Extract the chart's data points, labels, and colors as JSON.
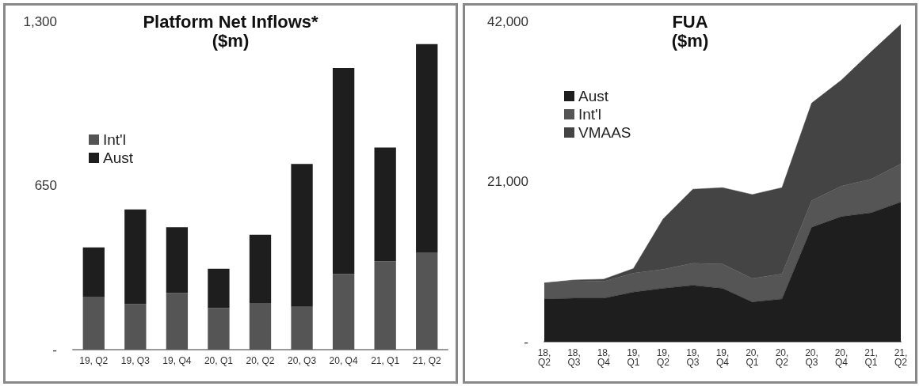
{
  "chart_data": [
    {
      "type": "bar",
      "title": "Platform Net Inflows*",
      "subtitle": "($m)",
      "stacked": true,
      "categories": [
        "19, Q2",
        "19, Q3",
        "19, Q4",
        "20, Q1",
        "20, Q2",
        "20, Q3",
        "20, Q4",
        "21, Q1",
        "21, Q2"
      ],
      "series": [
        {
          "name": "Int'l",
          "color": "#555555",
          "values": [
            210,
            180,
            225,
            165,
            185,
            170,
            300,
            350,
            385
          ]
        },
        {
          "name": "Aust",
          "color": "#1e1e1e",
          "values": [
            195,
            375,
            260,
            155,
            270,
            565,
            815,
            450,
            825
          ]
        }
      ],
      "ylim": [
        0,
        1300
      ],
      "yticks": [
        {
          "value": 0,
          "label": "-"
        },
        650,
        {
          "value": 1300,
          "label": "1,300"
        }
      ],
      "grid": false,
      "legend": "left"
    },
    {
      "type": "area",
      "title": "FUA",
      "subtitle": "($m)",
      "stacked": true,
      "categories": [
        "18, Q2",
        "18, Q3",
        "18, Q4",
        "19, Q1",
        "19, Q2",
        "19, Q3",
        "19, Q4",
        "20, Q1",
        "20, Q2",
        "20, Q3",
        "20, Q4",
        "21, Q1",
        "21, Q2"
      ],
      "series": [
        {
          "name": "Aust",
          "color": "#1e1e1e",
          "values": [
            5600,
            5700,
            5700,
            6500,
            7000,
            7400,
            7000,
            5200,
            5600,
            15000,
            16400,
            16900,
            18300
          ]
        },
        {
          "name": "Int'l",
          "color": "#555555",
          "values": [
            2100,
            2300,
            2200,
            2500,
            2500,
            2900,
            3200,
            3100,
            3300,
            3500,
            4000,
            4400,
            5000
          ]
        },
        {
          "name": "VMAAS",
          "color": "#444444",
          "values": [
            0,
            100,
            300,
            600,
            6600,
            9700,
            10000,
            11000,
            11300,
            12800,
            13900,
            16700,
            18300
          ]
        }
      ],
      "ylim": [
        0,
        42000
      ],
      "yticks": [
        {
          "value": 0,
          "label": "-"
        },
        {
          "value": 21000,
          "label": "21,000"
        },
        {
          "value": 42000,
          "label": "42,000"
        }
      ],
      "grid": false,
      "legend": "top left"
    }
  ]
}
